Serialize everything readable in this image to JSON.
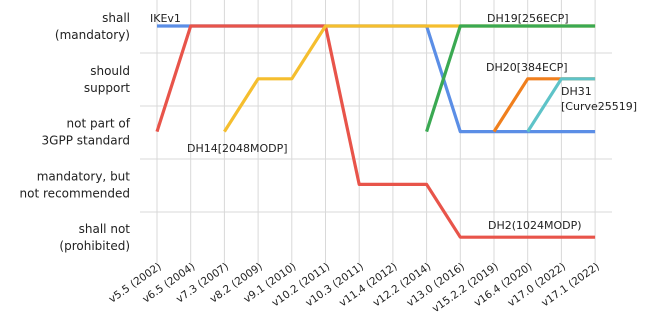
{
  "chart_data": {
    "type": "line",
    "categories": [
      "v5.5 (2002)",
      "v6.5 (2004)",
      "v7.3 (2007)",
      "v8.2 (2009)",
      "v9.1 (2010)",
      "v10.2 (2011)",
      "v10.3 (2011)",
      "v11.4 (2012)",
      "v12.2 (2014)",
      "v13.0 (2016)",
      "v15.2.2 (2019)",
      "v16.4 (2020)",
      "v17.0 (2022)",
      "v17.1 (2022)"
    ],
    "levels": [
      "shall not (prohibited)",
      "mandatory, but not recommended",
      "not part of 3GPP standard",
      "should support",
      "shall (mandatory)"
    ],
    "level_lines": [
      [
        "shall not",
        "(prohibited)"
      ],
      [
        "mandatory, but",
        "not recommended"
      ],
      [
        "not part of",
        "3GPP standard"
      ],
      [
        "should",
        "support"
      ],
      [
        "shall",
        "(mandatory)"
      ]
    ],
    "grid": true,
    "series": [
      {
        "name": "IKEv1",
        "color": "#5b8ee6",
        "points": [
          [
            0,
            4
          ],
          [
            1,
            4
          ],
          [
            2,
            4
          ],
          [
            3,
            4
          ],
          [
            4,
            4
          ],
          [
            5,
            4
          ],
          [
            6,
            4
          ],
          [
            7,
            4
          ],
          [
            8,
            4
          ],
          [
            9,
            2
          ],
          [
            10,
            2
          ],
          [
            11,
            2
          ],
          [
            12,
            2
          ],
          [
            13,
            2
          ]
        ]
      },
      {
        "name": "DH2(1024MODP)",
        "color": "#e8544a",
        "points": [
          [
            0,
            2
          ],
          [
            1,
            4
          ],
          [
            2,
            4
          ],
          [
            3,
            4
          ],
          [
            4,
            4
          ],
          [
            5,
            4
          ],
          [
            6,
            1
          ],
          [
            7,
            1
          ],
          [
            8,
            1
          ],
          [
            9,
            0
          ],
          [
            10,
            0
          ],
          [
            11,
            0
          ],
          [
            12,
            0
          ],
          [
            13,
            0
          ]
        ]
      },
      {
        "name": "DH14[2048MODP]",
        "color": "#f5be2e",
        "points": [
          [
            2,
            2
          ],
          [
            3,
            3
          ],
          [
            4,
            3
          ],
          [
            5,
            4
          ],
          [
            6,
            4
          ],
          [
            7,
            4
          ],
          [
            8,
            4
          ],
          [
            9,
            4
          ],
          [
            10,
            4
          ],
          [
            11,
            4
          ],
          [
            12,
            4
          ],
          [
            13,
            4
          ]
        ]
      },
      {
        "name": "DH19[256ECP]",
        "color": "#3aa952",
        "points": [
          [
            8,
            2
          ],
          [
            9,
            4
          ],
          [
            10,
            4
          ],
          [
            11,
            4
          ],
          [
            12,
            4
          ],
          [
            13,
            4
          ]
        ]
      },
      {
        "name": "DH20[384ECP]",
        "color": "#f07f1d",
        "points": [
          [
            10,
            2
          ],
          [
            11,
            3
          ],
          [
            12,
            3
          ],
          [
            13,
            3
          ]
        ]
      },
      {
        "name": "DH31 [Curve25519]",
        "name_lines": [
          "DH31",
          "[Curve25519]"
        ],
        "color": "#5ec3c8",
        "points": [
          [
            11,
            2
          ],
          [
            12,
            3
          ],
          [
            13,
            3
          ]
        ]
      }
    ]
  }
}
